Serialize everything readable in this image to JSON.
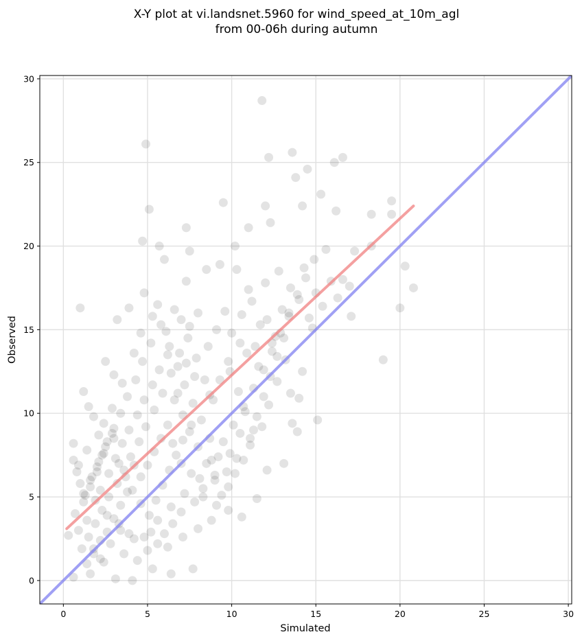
{
  "chart_data": {
    "type": "scatter",
    "title": "X-Y plot at vi.landsnet.5960 for wind_speed_at_10m_agl",
    "subtitle": "from 00-06h during autumn",
    "xlabel": "Simulated",
    "ylabel": "Observed",
    "xlim": [
      -1.4,
      30.2
    ],
    "ylim": [
      -1.4,
      30.2
    ],
    "xticks": [
      0,
      5,
      10,
      15,
      20,
      25,
      30
    ],
    "yticks": [
      0,
      5,
      10,
      15,
      20,
      25,
      30
    ],
    "grid": true,
    "legend": "none",
    "colors": {
      "points": "#000000",
      "regression_line": "#f08080",
      "identity_line": "#8080f0",
      "grid": "#e0e0e0"
    },
    "regression_line": {
      "x": [
        0.2,
        20.8
      ],
      "y": [
        3.1,
        22.4
      ]
    },
    "identity_line": {
      "x": [
        -1.4,
        30.2
      ],
      "y": [
        -1.4,
        30.2
      ]
    },
    "series": [
      {
        "values": [
          [
            1.0,
            16.3
          ],
          [
            4.9,
            26.1
          ],
          [
            11.8,
            28.7
          ],
          [
            5.1,
            22.2
          ],
          [
            4.7,
            20.3
          ],
          [
            5.7,
            20.0
          ],
          [
            7.3,
            21.1
          ],
          [
            9.5,
            22.6
          ],
          [
            12.2,
            25.3
          ],
          [
            13.6,
            25.6
          ],
          [
            14.5,
            24.6
          ],
          [
            16.1,
            25.0
          ],
          [
            16.6,
            25.3
          ],
          [
            15.3,
            23.1
          ],
          [
            12.3,
            21.4
          ],
          [
            11.0,
            21.1
          ],
          [
            13.8,
            24.1
          ],
          [
            12.0,
            22.4
          ],
          [
            14.2,
            22.4
          ],
          [
            16.2,
            22.1
          ],
          [
            18.3,
            21.9
          ],
          [
            19.5,
            22.7
          ],
          [
            19.5,
            21.9
          ],
          [
            20.3,
            18.8
          ],
          [
            20.0,
            16.3
          ],
          [
            20.8,
            17.5
          ],
          [
            19.0,
            13.2
          ],
          [
            18.3,
            20.0
          ],
          [
            17.3,
            19.7
          ],
          [
            15.1,
            9.6
          ],
          [
            13.9,
            8.9
          ],
          [
            13.6,
            9.4
          ],
          [
            14.2,
            12.5
          ],
          [
            13.1,
            7.0
          ],
          [
            12.1,
            6.6
          ],
          [
            11.5,
            4.9
          ],
          [
            10.6,
            3.8
          ],
          [
            9.8,
            4.2
          ],
          [
            8.8,
            3.6
          ],
          [
            7.7,
            0.7
          ],
          [
            6.4,
            0.4
          ],
          [
            5.3,
            0.7
          ],
          [
            4.1,
            0.0
          ],
          [
            3.1,
            0.1
          ],
          [
            1.6,
            0.4
          ],
          [
            0.6,
            0.2
          ],
          [
            0.3,
            2.7
          ],
          [
            0.6,
            8.2
          ],
          [
            0.6,
            7.2
          ],
          [
            0.8,
            6.5
          ],
          [
            1.2,
            11.3
          ],
          [
            1.5,
            10.4
          ],
          [
            2.5,
            13.1
          ],
          [
            3.2,
            15.6
          ],
          [
            3.9,
            16.3
          ],
          [
            4.8,
            17.2
          ],
          [
            5.6,
            16.5
          ],
          [
            6.0,
            19.2
          ],
          [
            7.5,
            19.7
          ],
          [
            7.3,
            17.9
          ],
          [
            8.5,
            18.6
          ],
          [
            9.3,
            18.9
          ],
          [
            10.2,
            20.0
          ],
          [
            10.3,
            18.6
          ],
          [
            11.0,
            17.4
          ],
          [
            11.7,
            15.3
          ],
          [
            12.6,
            14.6
          ],
          [
            13.4,
            15.8
          ],
          [
            14.0,
            16.8
          ],
          [
            15.0,
            17.2
          ],
          [
            16.3,
            16.9
          ],
          [
            16.6,
            18.0
          ],
          [
            17.0,
            17.6
          ],
          [
            17.1,
            15.8
          ],
          [
            14.6,
            15.7
          ],
          [
            13.2,
            13.2
          ],
          [
            12.7,
            11.9
          ],
          [
            12.2,
            10.5
          ],
          [
            11.8,
            9.2
          ],
          [
            11.1,
            8.1
          ],
          [
            10.3,
            7.3
          ],
          [
            9.7,
            6.5
          ],
          [
            9.0,
            6.3
          ],
          [
            8.3,
            5.5
          ],
          [
            7.8,
            4.7
          ],
          [
            7.0,
            4.1
          ],
          [
            6.5,
            3.4
          ],
          [
            6.0,
            2.8
          ],
          [
            5.6,
            2.2
          ],
          [
            5.0,
            1.8
          ],
          [
            4.4,
            1.2
          ],
          [
            3.9,
            2.8
          ],
          [
            3.3,
            3.4
          ],
          [
            2.8,
            2.2
          ],
          [
            2.2,
            1.3
          ],
          [
            1.8,
            1.9
          ],
          [
            1.4,
            3.6
          ],
          [
            1.2,
            4.7
          ],
          [
            1.6,
            5.6
          ],
          [
            2.0,
            6.5
          ],
          [
            2.3,
            7.5
          ],
          [
            2.6,
            8.3
          ],
          [
            3.0,
            9.1
          ],
          [
            3.4,
            10.0
          ],
          [
            3.8,
            11.0
          ],
          [
            4.3,
            12.0
          ],
          [
            4.7,
            13.1
          ],
          [
            5.2,
            14.2
          ],
          [
            5.8,
            15.3
          ],
          [
            6.3,
            14.0
          ],
          [
            6.8,
            12.8
          ],
          [
            7.2,
            11.7
          ],
          [
            7.7,
            10.6
          ],
          [
            8.2,
            9.6
          ],
          [
            8.7,
            8.5
          ],
          [
            9.2,
            7.4
          ],
          [
            8.9,
            10.8
          ],
          [
            8.4,
            12.0
          ],
          [
            7.9,
            13.3
          ],
          [
            7.4,
            14.5
          ],
          [
            7.0,
            15.6
          ],
          [
            6.6,
            16.2
          ],
          [
            9.9,
            12.5
          ],
          [
            10.4,
            11.3
          ],
          [
            10.8,
            10.1
          ],
          [
            11.3,
            9.0
          ],
          [
            10.0,
            14.8
          ],
          [
            10.6,
            15.9
          ],
          [
            11.2,
            16.7
          ],
          [
            12.0,
            17.8
          ],
          [
            12.8,
            18.5
          ],
          [
            13.5,
            17.5
          ],
          [
            14.3,
            18.7
          ],
          [
            13.0,
            16.2
          ],
          [
            12.4,
            14.2
          ],
          [
            11.6,
            12.8
          ],
          [
            10.9,
            13.6
          ],
          [
            9.6,
            16.1
          ],
          [
            9.1,
            15.0
          ],
          [
            8.6,
            14.0
          ],
          [
            8.0,
            16.0
          ],
          [
            7.5,
            15.2
          ],
          [
            6.9,
            13.6
          ],
          [
            6.4,
            12.4
          ],
          [
            5.9,
            11.2
          ],
          [
            5.4,
            10.2
          ],
          [
            4.9,
            9.2
          ],
          [
            4.5,
            8.3
          ],
          [
            4.0,
            7.4
          ],
          [
            3.6,
            6.6
          ],
          [
            3.2,
            5.8
          ],
          [
            2.7,
            5.0
          ],
          [
            2.3,
            4.2
          ],
          [
            1.9,
            3.4
          ],
          [
            1.5,
            2.6
          ],
          [
            1.1,
            1.9
          ],
          [
            0.9,
            3.0
          ],
          [
            0.7,
            4.0
          ],
          [
            1.3,
            5.1
          ],
          [
            1.7,
            6.2
          ],
          [
            2.1,
            7.1
          ],
          [
            2.5,
            8.0
          ],
          [
            2.9,
            8.8
          ],
          [
            3.3,
            7.0
          ],
          [
            3.7,
            6.2
          ],
          [
            4.1,
            5.4
          ],
          [
            4.6,
            4.6
          ],
          [
            5.1,
            3.9
          ],
          [
            5.5,
            4.8
          ],
          [
            5.9,
            5.7
          ],
          [
            6.3,
            6.6
          ],
          [
            6.7,
            7.5
          ],
          [
            7.1,
            8.4
          ],
          [
            7.6,
            9.3
          ],
          [
            8.0,
            8.0
          ],
          [
            8.5,
            7.0
          ],
          [
            9.0,
            6.0
          ],
          [
            9.4,
            5.1
          ],
          [
            9.8,
            5.6
          ],
          [
            10.2,
            6.4
          ],
          [
            10.7,
            7.2
          ],
          [
            11.1,
            8.5
          ],
          [
            11.5,
            9.8
          ],
          [
            11.9,
            11.0
          ],
          [
            12.3,
            12.2
          ],
          [
            12.7,
            13.4
          ],
          [
            13.1,
            14.5
          ],
          [
            13.5,
            11.2
          ],
          [
            14.0,
            10.9
          ],
          [
            1.8,
            9.8
          ],
          [
            2.4,
            9.4
          ],
          [
            2.9,
            10.3
          ],
          [
            3.5,
            11.8
          ],
          [
            4.2,
            13.6
          ],
          [
            4.6,
            14.8
          ],
          [
            5.3,
            15.8
          ],
          [
            6.1,
            14.9
          ],
          [
            3.0,
            12.3
          ],
          [
            2.1,
            8.7
          ],
          [
            1.4,
            7.8
          ],
          [
            0.9,
            6.9
          ],
          [
            1.0,
            5.8
          ],
          [
            1.9,
            4.8
          ],
          [
            2.6,
            3.9
          ],
          [
            3.4,
            3.0
          ],
          [
            4.2,
            2.5
          ],
          [
            5.2,
            2.9
          ],
          [
            6.2,
            2.0
          ],
          [
            7.1,
            2.6
          ],
          [
            8.0,
            3.1
          ],
          [
            2.2,
            5.4
          ],
          [
            2.7,
            6.4
          ],
          [
            3.1,
            7.3
          ],
          [
            3.5,
            8.2
          ],
          [
            3.9,
            9.0
          ],
          [
            4.4,
            9.9
          ],
          [
            4.8,
            10.8
          ],
          [
            5.3,
            11.7
          ],
          [
            5.7,
            12.6
          ],
          [
            6.2,
            13.5
          ],
          [
            6.6,
            10.8
          ],
          [
            7.1,
            9.9
          ],
          [
            7.5,
            8.9
          ],
          [
            5.0,
            6.9
          ],
          [
            5.4,
            7.7
          ],
          [
            5.8,
            8.5
          ],
          [
            6.2,
            9.3
          ],
          [
            4.6,
            6.2
          ],
          [
            4.2,
            6.9
          ],
          [
            3.8,
            5.3
          ],
          [
            3.4,
            4.5
          ],
          [
            3.0,
            3.7
          ],
          [
            2.6,
            2.9
          ],
          [
            2.2,
            2.4
          ],
          [
            1.8,
            1.6
          ],
          [
            1.4,
            1.0
          ],
          [
            2.4,
            1.1
          ],
          [
            3.6,
            1.6
          ],
          [
            4.8,
            2.6
          ],
          [
            5.6,
            3.6
          ],
          [
            6.4,
            4.4
          ],
          [
            7.2,
            5.2
          ],
          [
            8.1,
            6.1
          ],
          [
            8.8,
            7.2
          ],
          [
            9.5,
            8.3
          ],
          [
            10.1,
            9.3
          ],
          [
            10.7,
            10.4
          ],
          [
            11.3,
            11.5
          ],
          [
            11.9,
            12.6
          ],
          [
            12.4,
            13.7
          ],
          [
            12.9,
            14.8
          ],
          [
            13.4,
            16.0
          ],
          [
            13.9,
            17.1
          ],
          [
            14.4,
            18.1
          ],
          [
            14.9,
            19.2
          ],
          [
            15.6,
            19.8
          ],
          [
            15.9,
            17.9
          ],
          [
            15.4,
            16.4
          ],
          [
            14.8,
            15.1
          ],
          [
            8.7,
            11.1
          ],
          [
            9.3,
            12.0
          ],
          [
            9.8,
            13.1
          ],
          [
            10.5,
            14.2
          ],
          [
            11.4,
            14.0
          ],
          [
            12.1,
            15.6
          ],
          [
            7.8,
            12.2
          ],
          [
            7.3,
            13.0
          ],
          [
            6.8,
            11.2
          ],
          [
            6.5,
            8.2
          ],
          [
            7.0,
            7.0
          ],
          [
            7.6,
            6.4
          ],
          [
            8.3,
            5.0
          ],
          [
            9.1,
            4.5
          ],
          [
            9.9,
            7.6
          ],
          [
            10.5,
            8.8
          ],
          [
            3.0,
            8.5
          ],
          [
            2.4,
            7.6
          ],
          [
            2.0,
            6.8
          ],
          [
            1.6,
            6.0
          ],
          [
            1.2,
            5.2
          ]
        ]
      }
    ]
  }
}
